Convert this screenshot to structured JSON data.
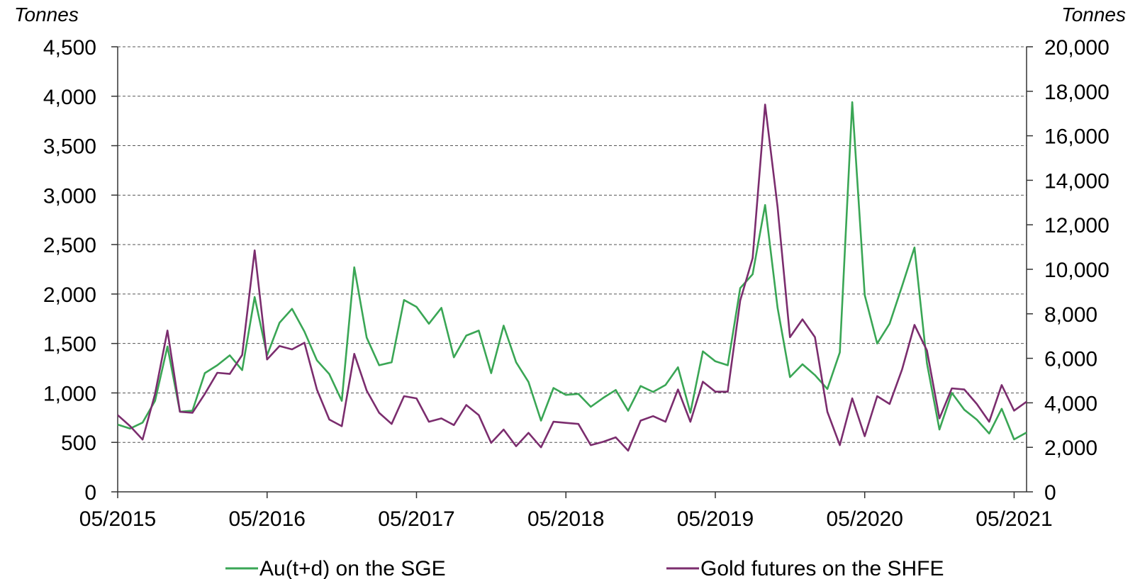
{
  "chart_data": {
    "type": "line",
    "left_axis": {
      "unit": "Tonnes",
      "ylim": [
        0,
        4500
      ],
      "ticks": [
        0,
        500,
        1000,
        1500,
        2000,
        2500,
        3000,
        3500,
        4000,
        4500
      ],
      "tick_labels": [
        "0",
        "500",
        "1,000",
        "1,500",
        "2,000",
        "2,500",
        "3,000",
        "3,500",
        "4,000",
        "4,500"
      ]
    },
    "right_axis": {
      "unit": "Tonnes",
      "ylim": [
        0,
        20000
      ],
      "ticks": [
        0,
        2000,
        4000,
        6000,
        8000,
        10000,
        12000,
        14000,
        16000,
        18000,
        20000
      ],
      "tick_labels": [
        "0",
        "2,000",
        "4,000",
        "6,000",
        "8,000",
        "10,000",
        "12,000",
        "14,000",
        "16,000",
        "18,000",
        "20,000"
      ]
    },
    "x_tick_labels": [
      "05/2015",
      "05/2016",
      "05/2017",
      "05/2018",
      "05/2019",
      "05/2020",
      "05/2021"
    ],
    "x_start": "05/2015",
    "grid": true,
    "legend_position": "bottom",
    "series": [
      {
        "name": "Au(t+d) on the SGE",
        "axis": "left",
        "color": "#3aa655",
        "values": [
          680,
          640,
          700,
          920,
          1470,
          810,
          820,
          1200,
          1280,
          1380,
          1230,
          1970,
          1380,
          1710,
          1850,
          1620,
          1330,
          1190,
          920,
          2270,
          1560,
          1280,
          1310,
          1940,
          1870,
          1700,
          1860,
          1360,
          1580,
          1630,
          1200,
          1680,
          1310,
          1110,
          720,
          1050,
          980,
          990,
          860,
          950,
          1030,
          820,
          1070,
          1010,
          1080,
          1260,
          800,
          1420,
          1320,
          1280,
          2060,
          2200,
          2900,
          1860,
          1160,
          1290,
          1180,
          1040,
          1410,
          3940,
          1990,
          1500,
          1700,
          2080,
          2470,
          1300,
          630,
          1000,
          830,
          730,
          590,
          840,
          530,
          600
        ]
      },
      {
        "name": "Gold futures on the SHFE",
        "axis": "right",
        "color": "#7b2d6e",
        "values": [
          3450,
          2950,
          2350,
          4400,
          7250,
          3600,
          3550,
          4400,
          5350,
          5300,
          6150,
          10850,
          5950,
          6550,
          6400,
          6700,
          4600,
          3250,
          2950,
          6200,
          4550,
          3550,
          3050,
          4300,
          4200,
          3150,
          3300,
          3000,
          3900,
          3450,
          2200,
          2800,
          2050,
          2650,
          2000,
          3150,
          3100,
          3050,
          2100,
          2250,
          2450,
          1850,
          3200,
          3400,
          3150,
          4600,
          3150,
          4950,
          4500,
          4500,
          8600,
          10500,
          17400,
          12800,
          6950,
          7750,
          6950,
          3600,
          2100,
          4200,
          2500,
          4300,
          3950,
          5500,
          7500,
          6350,
          3300,
          4650,
          4600,
          3950,
          3150,
          4800,
          3650,
          4050
        ]
      }
    ]
  }
}
